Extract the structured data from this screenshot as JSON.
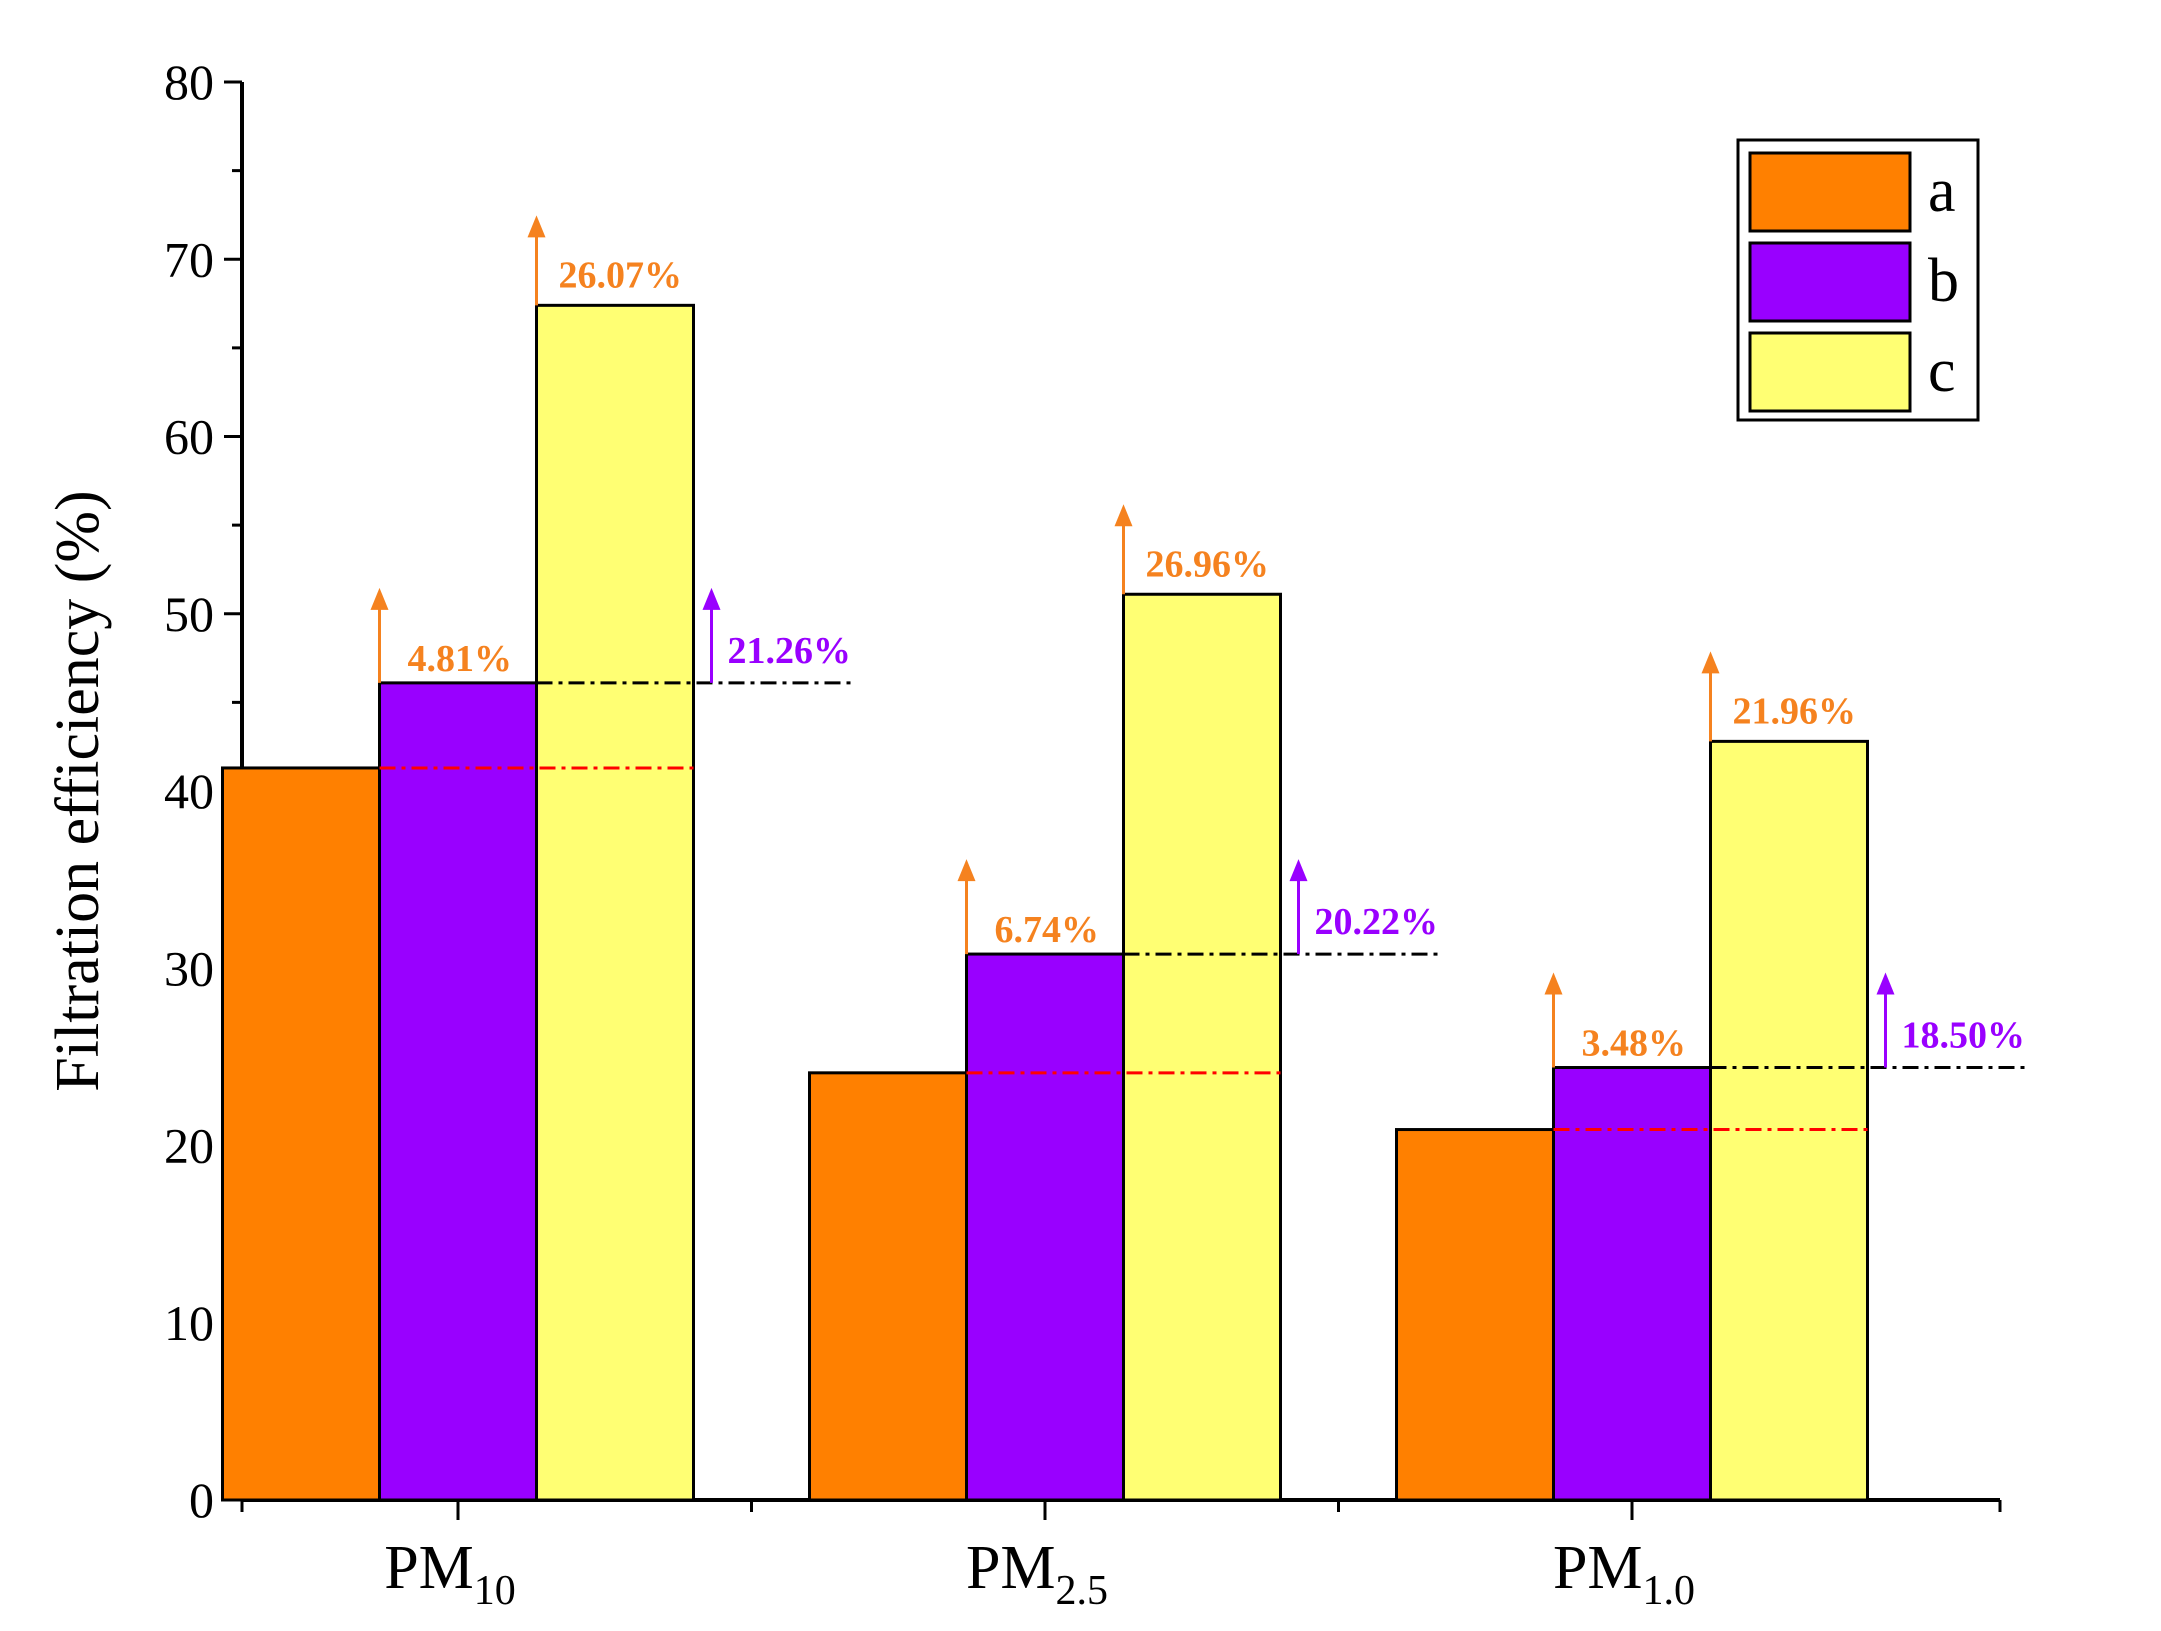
{
  "chart_data": {
    "type": "bar",
    "title": "",
    "xlabel": "",
    "ylabel": "Filtration efficiency (%)",
    "ylim": [
      0,
      80
    ],
    "yticks": [
      0,
      10,
      20,
      30,
      40,
      50,
      60,
      70,
      80
    ],
    "grid": false,
    "legend_position": "top-right",
    "categories": [
      {
        "base": "PM",
        "sub": "10"
      },
      {
        "base": "PM",
        "sub": "2.5"
      },
      {
        "base": "PM",
        "sub": "1.0"
      }
    ],
    "series": [
      {
        "name": "a",
        "color": "#FF8000",
        "values": [
          41.3,
          24.1,
          20.9
        ]
      },
      {
        "name": "b",
        "color": "#9900FF",
        "values": [
          46.1,
          30.8,
          24.4
        ]
      },
      {
        "name": "c",
        "color": "#FFFF73",
        "values": [
          67.4,
          51.1,
          42.8
        ]
      }
    ],
    "annotations": {
      "a_to_c": {
        "color": "#F5821F",
        "labels": [
          "26.07%",
          "26.96%",
          "21.96%"
        ]
      },
      "a_to_b": {
        "color": "#F5821F",
        "labels": [
          "4.81%",
          "6.74%",
          "3.48%"
        ]
      },
      "b_to_c": {
        "color": "#9900FF",
        "labels": [
          "21.26%",
          "20.22%",
          "18.50%"
        ]
      }
    },
    "reference_lines": {
      "a_color": "#FF0000",
      "b_color": "#000000"
    }
  }
}
